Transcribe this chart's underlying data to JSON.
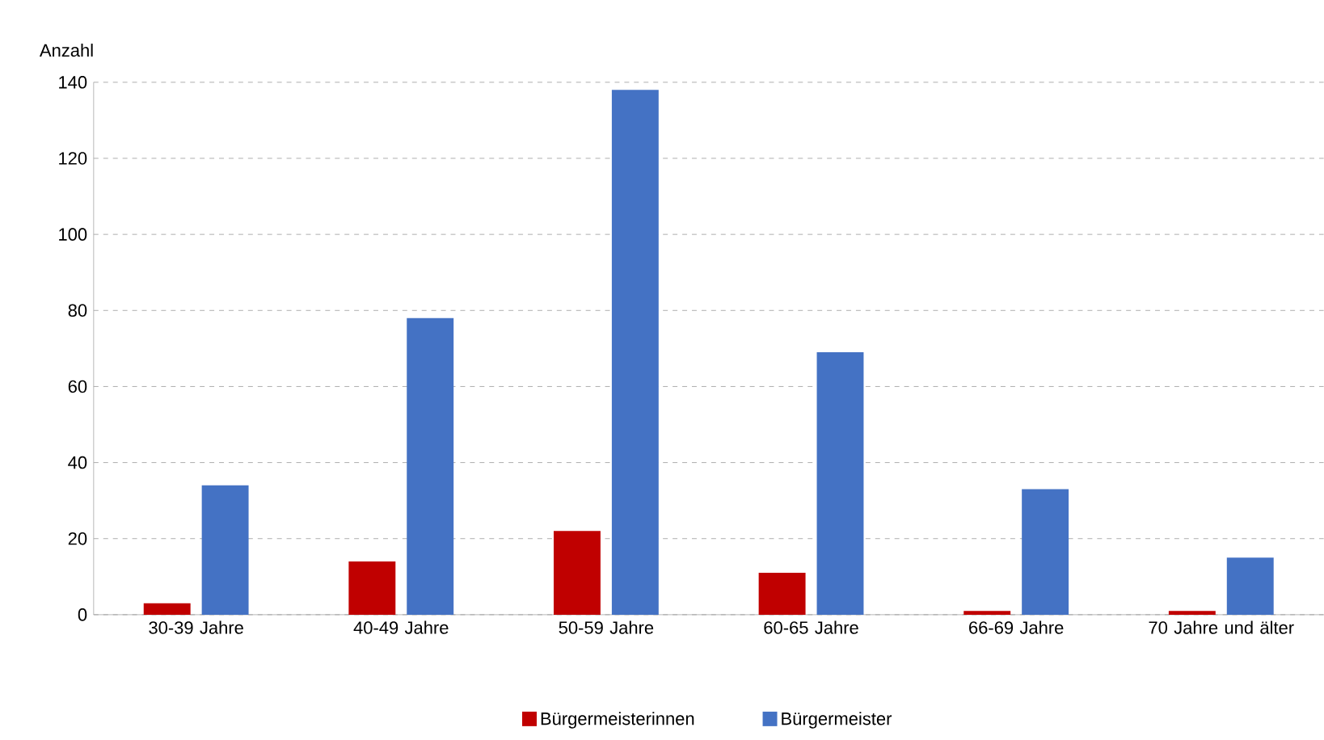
{
  "chart_data": {
    "type": "bar",
    "ylabel": "Anzahl",
    "categories": [
      "30-39 Jahre",
      "40-49 Jahre",
      "50-59 Jahre",
      "60-65 Jahre",
      "66-69 Jahre",
      "70 Jahre und älter"
    ],
    "series": [
      {
        "name": "Bürgermeisterinnen",
        "color": "#c00000",
        "values": [
          3,
          14,
          22,
          11,
          1,
          1
        ]
      },
      {
        "name": "Bürgermeister",
        "color": "#4472c4",
        "values": [
          34,
          78,
          138,
          69,
          33,
          15
        ]
      }
    ],
    "ylim": [
      0,
      140
    ],
    "yticks": [
      0,
      20,
      40,
      60,
      80,
      100,
      120,
      140
    ],
    "grid": "y",
    "legend": "bottom"
  }
}
